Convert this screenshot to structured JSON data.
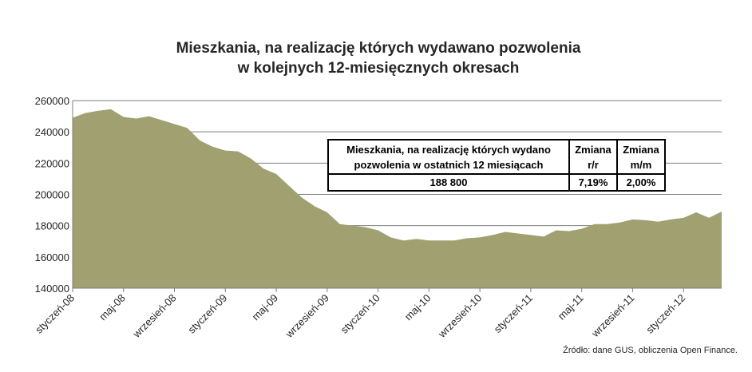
{
  "chart_data": {
    "type": "area",
    "title": [
      "Mieszkania, na realizację których wydawano pozwolenia",
      "w kolejnych 12-miesięcznych okresach"
    ],
    "xlabel": "",
    "ylabel": "",
    "ylim": [
      140000,
      260000
    ],
    "yticks": [
      140000,
      160000,
      180000,
      200000,
      220000,
      240000,
      260000
    ],
    "ytick_labels": [
      "140000",
      "160000",
      "180000",
      "200000",
      "220000",
      "240000",
      "260000"
    ],
    "grid": true,
    "x_labels": [
      {
        "i": 0,
        "label": "styczeń-08"
      },
      {
        "i": 4,
        "label": "maj-08"
      },
      {
        "i": 8,
        "label": "wrzesień-08"
      },
      {
        "i": 12,
        "label": "styczeń-09"
      },
      {
        "i": 16,
        "label": "maj-09"
      },
      {
        "i": 20,
        "label": "wrzesień-09"
      },
      {
        "i": 24,
        "label": "styczeń-10"
      },
      {
        "i": 28,
        "label": "maj-10"
      },
      {
        "i": 32,
        "label": "wrzesień-10"
      },
      {
        "i": 36,
        "label": "styczeń-11"
      },
      {
        "i": 40,
        "label": "maj-11"
      },
      {
        "i": 44,
        "label": "wrzesień-11"
      },
      {
        "i": 48,
        "label": "styczeń-12"
      }
    ],
    "values": [
      249000,
      252000,
      253500,
      254500,
      249500,
      248500,
      250000,
      247500,
      245000,
      242500,
      234500,
      230500,
      228000,
      227500,
      223000,
      216500,
      213000,
      205500,
      198000,
      192500,
      188500,
      181000,
      180000,
      179000,
      177000,
      172500,
      170500,
      171500,
      170500,
      170500,
      170500,
      172000,
      172500,
      174000,
      176000,
      175000,
      174000,
      173000,
      177000,
      176500,
      178000,
      181000,
      181000,
      182000,
      184000,
      183500,
      182500,
      184000,
      185000,
      188500,
      185000,
      189000
    ],
    "color": "#a0a070"
  },
  "info_box": {
    "header_col1_line1": "Mieszkania, na realizację których wydano",
    "header_col1_line2": "pozwolenia w ostatnich 12 miesiącach",
    "header_col2_line1": "Zmiana",
    "header_col2_line2": "r/r",
    "header_col3_line1": "Zmiana",
    "header_col3_line2": "m/m",
    "value_col1": "188 800",
    "value_col2": "7,19%",
    "value_col3": "2,00%"
  },
  "source": "Źródło: dane GUS, obliczenia Open Finance."
}
